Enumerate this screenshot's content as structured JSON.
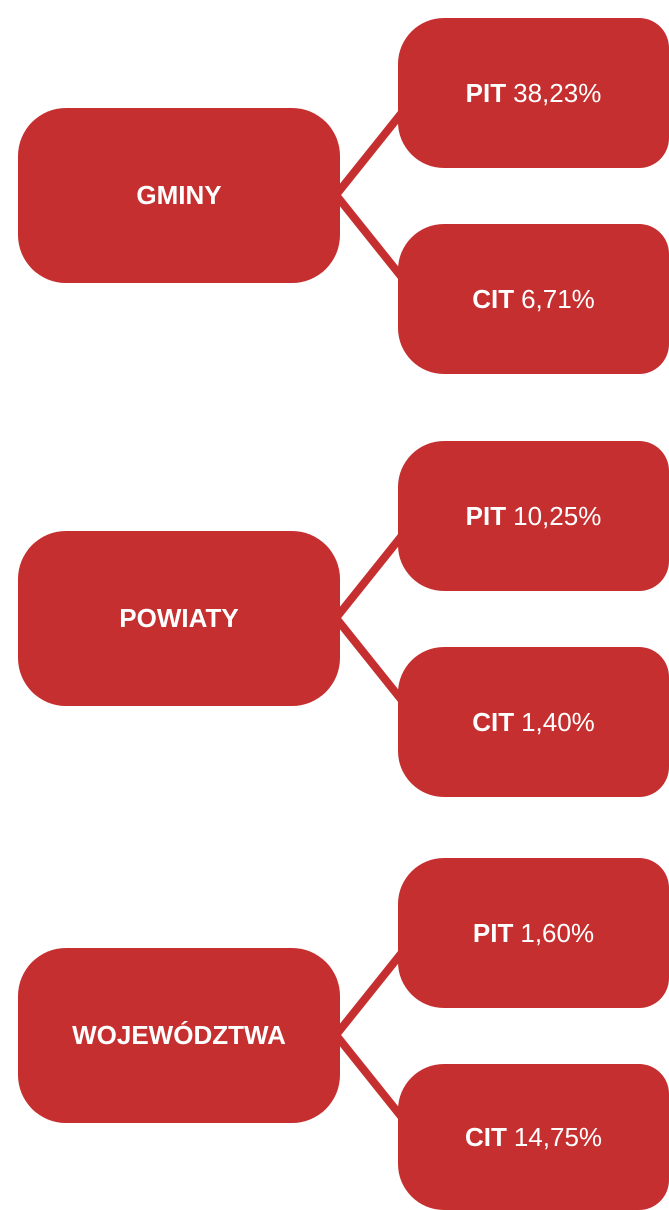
{
  "groups": [
    {
      "name": "GMINY",
      "items": [
        {
          "tax": "PIT",
          "share": "38,23%"
        },
        {
          "tax": "CIT",
          "share": "6,71%"
        }
      ]
    },
    {
      "name": "POWIATY",
      "items": [
        {
          "tax": "PIT",
          "share": "10,25%"
        },
        {
          "tax": "CIT",
          "share": "1,40%"
        }
      ]
    },
    {
      "name": "WOJEWÓDZTWA",
      "items": [
        {
          "tax": "PIT",
          "share": "1,60%"
        },
        {
          "tax": "CIT",
          "share": "14,75%"
        }
      ]
    }
  ]
}
